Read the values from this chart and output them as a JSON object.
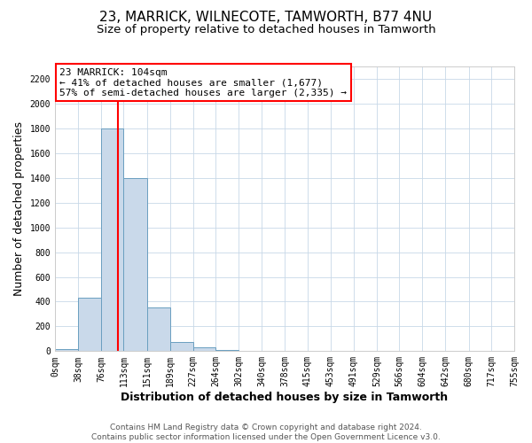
{
  "title": "23, MARRICK, WILNECOTE, TAMWORTH, B77 4NU",
  "subtitle": "Size of property relative to detached houses in Tamworth",
  "xlabel": "Distribution of detached houses by size in Tamworth",
  "ylabel": "Number of detached properties",
  "bin_edges": [
    0,
    38,
    76,
    113,
    151,
    189,
    227,
    264,
    302,
    340,
    378,
    415,
    453,
    491,
    529,
    566,
    604,
    642,
    680,
    717,
    755
  ],
  "bin_counts": [
    20,
    430,
    1800,
    1400,
    350,
    75,
    30,
    10,
    0,
    0,
    0,
    0,
    0,
    0,
    0,
    0,
    0,
    0,
    0,
    0
  ],
  "bar_color": "#c9d9ea",
  "bar_edge_color": "#6a9fc0",
  "vline_color": "red",
  "vline_x": 104,
  "annotation_title": "23 MARRICK: 104sqm",
  "annotation_line1": "← 41% of detached houses are smaller (1,677)",
  "annotation_line2": "57% of semi-detached houses are larger (2,335) →",
  "annotation_box_color": "white",
  "annotation_box_edge": "red",
  "ylim": [
    0,
    2300
  ],
  "yticks": [
    0,
    200,
    400,
    600,
    800,
    1000,
    1200,
    1400,
    1600,
    1800,
    2000,
    2200
  ],
  "xtick_labels": [
    "0sqm",
    "38sqm",
    "76sqm",
    "113sqm",
    "151sqm",
    "189sqm",
    "227sqm",
    "264sqm",
    "302sqm",
    "340sqm",
    "378sqm",
    "415sqm",
    "453sqm",
    "491sqm",
    "529sqm",
    "566sqm",
    "604sqm",
    "642sqm",
    "680sqm",
    "717sqm",
    "755sqm"
  ],
  "footer_line1": "Contains HM Land Registry data © Crown copyright and database right 2024.",
  "footer_line2": "Contains public sector information licensed under the Open Government Licence v3.0.",
  "background_color": "#ffffff",
  "grid_color": "#c8d8e8",
  "title_fontsize": 11,
  "subtitle_fontsize": 9.5,
  "xlabel_fontsize": 9,
  "ylabel_fontsize": 9,
  "tick_fontsize": 7,
  "footer_fontsize": 6.5,
  "annotation_fontsize": 8
}
